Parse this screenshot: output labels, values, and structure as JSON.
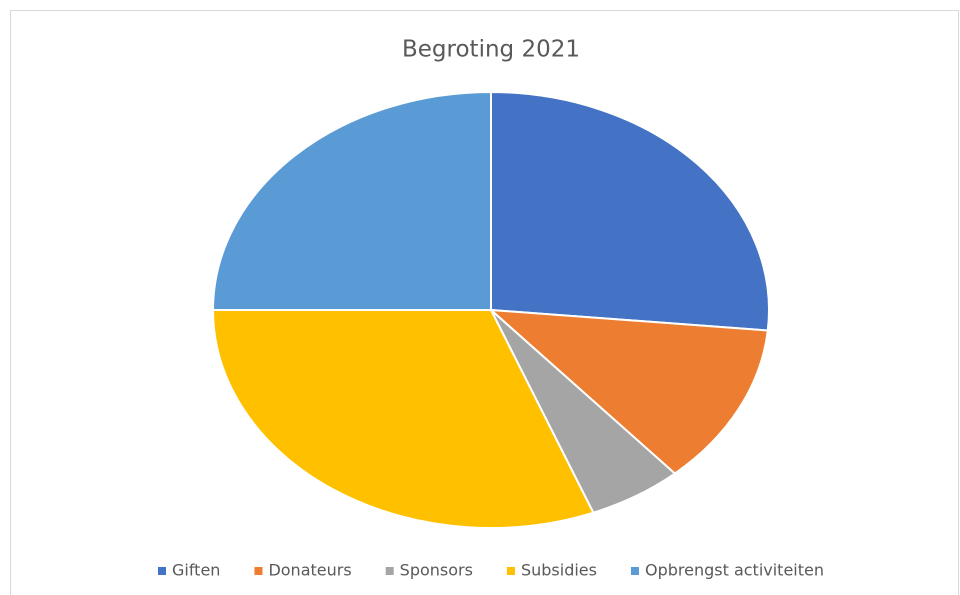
{
  "chart_data": {
    "type": "pie",
    "title": "Begroting 2021",
    "categories": [
      "Giften",
      "Donateurs",
      "Sponsors",
      "Subsidies",
      "Opbrengst activiteiten"
    ],
    "values": [
      26.5,
      12,
      5.5,
      31,
      25
    ],
    "colors": [
      "#4472c4",
      "#ed7d31",
      "#a5a5a5",
      "#ffc000",
      "#5b9bd5"
    ],
    "legend": "bottom"
  }
}
